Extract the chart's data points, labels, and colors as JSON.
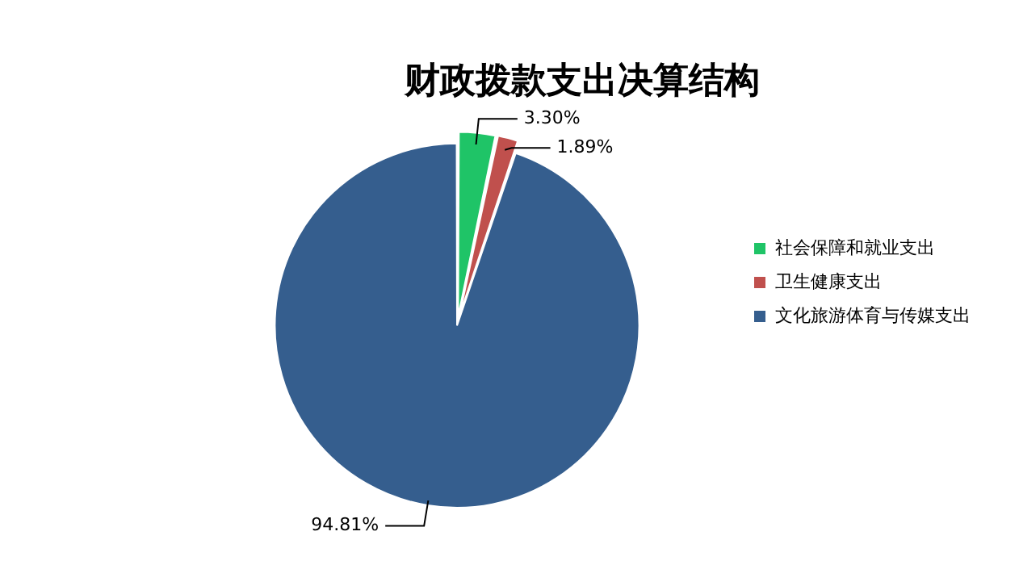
{
  "chart_data": {
    "type": "pie",
    "title": "财政拨款支出决算结构",
    "categories": [
      "社会保障和就业支出",
      "卫生健康支出",
      "文化旅游体育与传媒支出"
    ],
    "values": [
      3.3,
      1.89,
      94.81
    ],
    "value_labels": [
      "3.30%",
      "1.89%",
      "94.81%"
    ],
    "colors": [
      "#1fc467",
      "#c0504d",
      "#355e8e"
    ],
    "legend": "right"
  }
}
